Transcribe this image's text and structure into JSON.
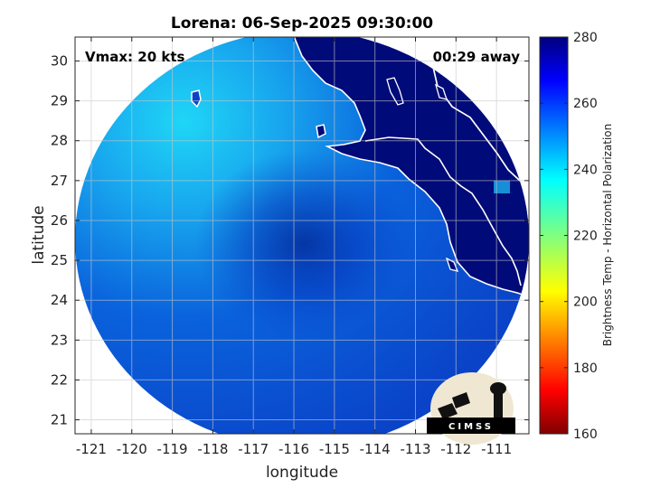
{
  "title": "Lorena: 06-Sep-2025 09:30:00",
  "annotations": {
    "vmax": "Vmax: 20 kts",
    "time_away": "00:29 away"
  },
  "axes": {
    "xlabel": "longitude",
    "ylabel": "latitude",
    "xticks": [
      "-121",
      "-120",
      "-119",
      "-118",
      "-117",
      "-116",
      "-115",
      "-114",
      "-113",
      "-112",
      "-111"
    ],
    "yticks": [
      "21",
      "22",
      "23",
      "24",
      "25",
      "26",
      "27",
      "28",
      "29",
      "30"
    ],
    "xlim": [
      -121.4,
      -110.2
    ],
    "ylim": [
      20.65,
      30.6
    ],
    "grid": true
  },
  "colorbar": {
    "label": "Brightness Temp - Horizontal Polarization",
    "ticks": [
      "160",
      "180",
      "200",
      "220",
      "240",
      "260",
      "280"
    ],
    "range": [
      160,
      280
    ],
    "colormap": "jet"
  },
  "logo": {
    "text": "CIMSS"
  },
  "map": {
    "storm_center_lon": -115.2,
    "storm_center_lat": 25.0,
    "land_color": "#000a78",
    "ocean_color_cold": "#0a3fd0",
    "ocean_color_warm": "#1bd3f5",
    "coastline_color": "#ffffff"
  }
}
